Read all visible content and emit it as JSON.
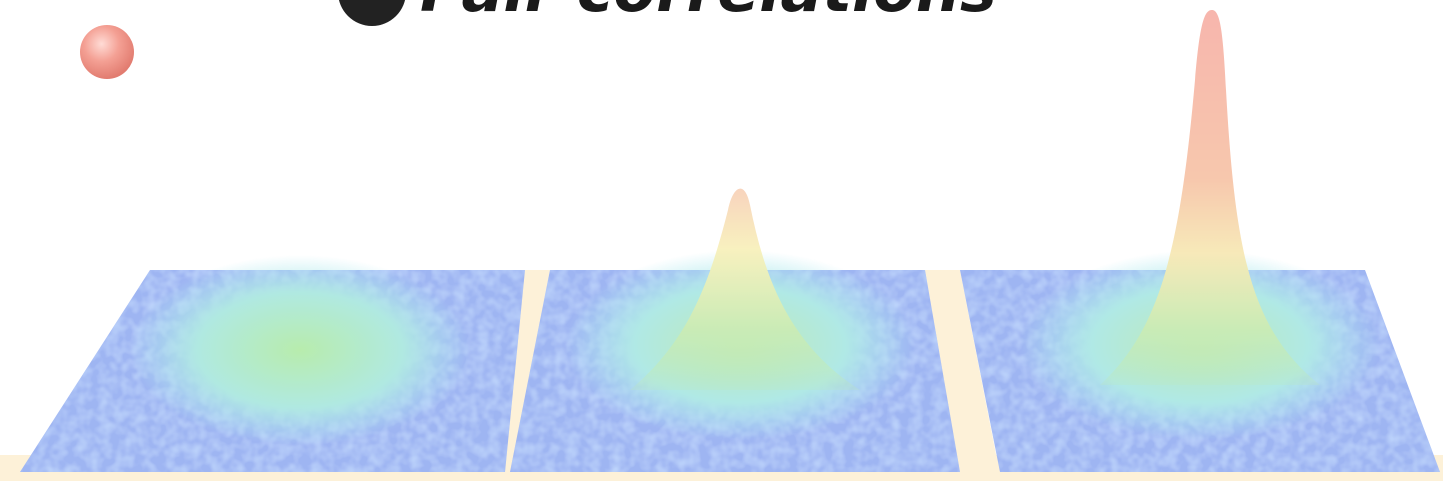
{
  "title": "Pair correlations"
}
